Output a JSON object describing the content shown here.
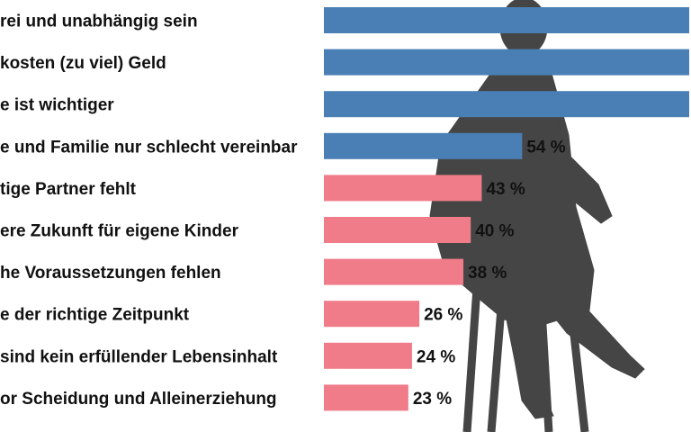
{
  "chart_data": {
    "type": "bar",
    "orientation": "horizontal",
    "categories": [
      "rei und unabhängig sein",
      "kosten (zu viel) Geld",
      "e ist wichtiger",
      "e und Familie nur schlecht vereinbar",
      "tige Partner fehlt",
      "ere Zukunft für eigene Kinder",
      "he Voraussetzungen fehlen",
      "e der richtige Zeitpunkt",
      "sind kein erfüllender Lebensinhalt",
      "or Scheidung und Alleinerziehung"
    ],
    "values": [
      null,
      null,
      null,
      54,
      43,
      40,
      38,
      26,
      24,
      23
    ],
    "value_labels": [
      "",
      "",
      "",
      "54 %",
      "43 %",
      "40 %",
      "38 %",
      "26 %",
      "24 %",
      "23 %"
    ],
    "colors": [
      "#4a7fb5",
      "#4a7fb5",
      "#4a7fb5",
      "#4a7fb5",
      "#f07b89",
      "#f07b89",
      "#f07b89",
      "#f07b89",
      "#f07b89",
      "#f07b89"
    ],
    "xlim": [
      0,
      100
    ]
  },
  "silhouette": {
    "icon": "seated-woman-silhouette",
    "color": "#454545"
  }
}
